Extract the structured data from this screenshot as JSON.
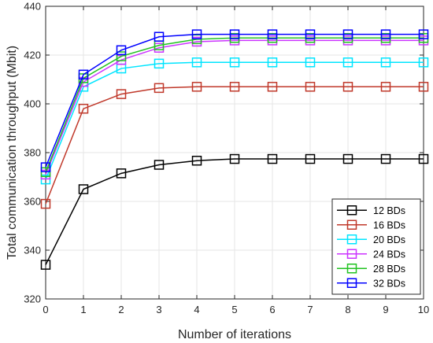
{
  "chart_data": {
    "type": "line",
    "xlabel": "Number of iterations",
    "ylabel": "Total communication throughput (Mbit)",
    "x": [
      0,
      1,
      2,
      3,
      4,
      5,
      6,
      7,
      8,
      9,
      10
    ],
    "xlim": [
      0,
      10
    ],
    "ylim": [
      320,
      440
    ],
    "xticks": [
      0,
      1,
      2,
      3,
      4,
      5,
      6,
      7,
      8,
      9,
      10
    ],
    "yticks": [
      320,
      340,
      360,
      380,
      400,
      420,
      440
    ],
    "grid": true,
    "legend_position": "bottom-right",
    "marker": "square",
    "series": [
      {
        "name": "12 BDs",
        "color": "#000000",
        "values": [
          334,
          365,
          371.5,
          375,
          376.7,
          377.4,
          377.4,
          377.4,
          377.4,
          377.4,
          377.4
        ]
      },
      {
        "name": "16 BDs",
        "color": "#c0392b",
        "values": [
          359,
          398,
          404,
          406.5,
          407,
          407,
          407,
          407,
          407,
          407,
          407
        ]
      },
      {
        "name": "20 BDs",
        "color": "#00e5ff",
        "values": [
          369,
          407,
          414.5,
          416.5,
          417,
          417,
          417,
          417,
          417,
          417,
          417
        ]
      },
      {
        "name": "24 BDs",
        "color": "#cc33ff",
        "values": [
          371,
          409,
          418,
          423,
          425.5,
          426,
          426,
          426,
          426,
          426,
          426
        ]
      },
      {
        "name": "28 BDs",
        "color": "#22c322",
        "values": [
          372,
          410.5,
          419.5,
          424,
          426.5,
          427,
          427,
          427,
          427,
          427,
          427
        ]
      },
      {
        "name": "32 BDs",
        "color": "#0000ff",
        "values": [
          374,
          412,
          422,
          427.5,
          428.5,
          428.5,
          428.5,
          428.5,
          428.5,
          428.5,
          428.5
        ]
      }
    ]
  }
}
